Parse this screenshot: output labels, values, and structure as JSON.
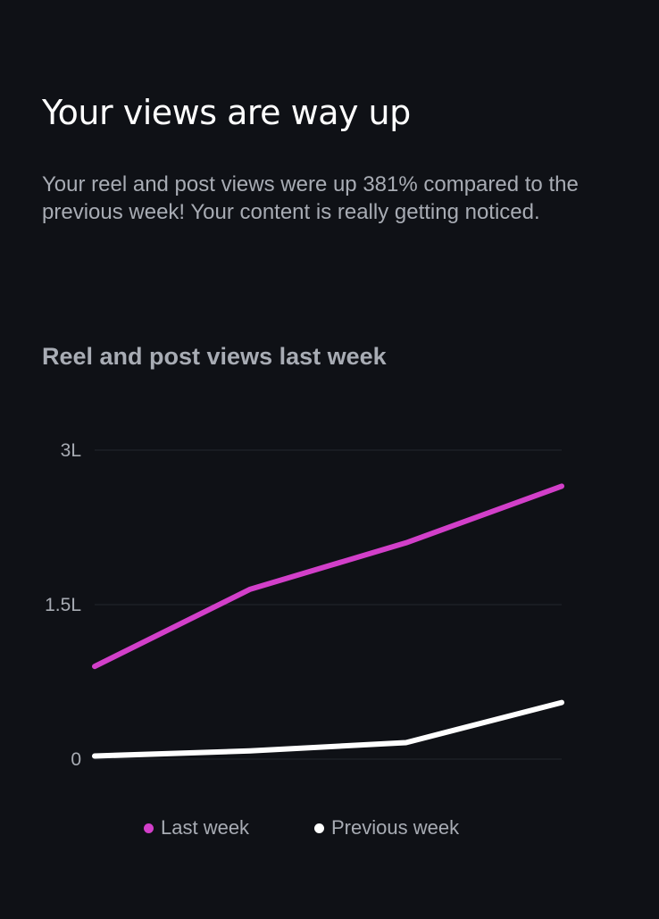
{
  "card": {
    "headline": "Your views are way up",
    "description": "Your reel and post views were up 381% compared to the previous week! Your content is really getting noticed.",
    "section_title": "Reel and post views last week"
  },
  "chart_data": {
    "type": "line",
    "title": "Reel and post views last week",
    "x": [
      1,
      2,
      3,
      4
    ],
    "ylim": [
      0,
      300000
    ],
    "y_ticks": [
      {
        "value": 0,
        "label": "0"
      },
      {
        "value": 150000,
        "label": "1.5L"
      },
      {
        "value": 300000,
        "label": "3L"
      }
    ],
    "grid": true,
    "legend_position": "bottom-center",
    "series": [
      {
        "name": "Last week",
        "color": "#d23fc9",
        "values": [
          90000,
          165000,
          210000,
          265000
        ]
      },
      {
        "name": "Previous week",
        "color": "#ffffff",
        "values": [
          3000,
          8000,
          16000,
          55000
        ]
      }
    ]
  },
  "colors": {
    "background": "#0f1116",
    "text_muted": "#a8acb4",
    "grid": "#23262e"
  }
}
